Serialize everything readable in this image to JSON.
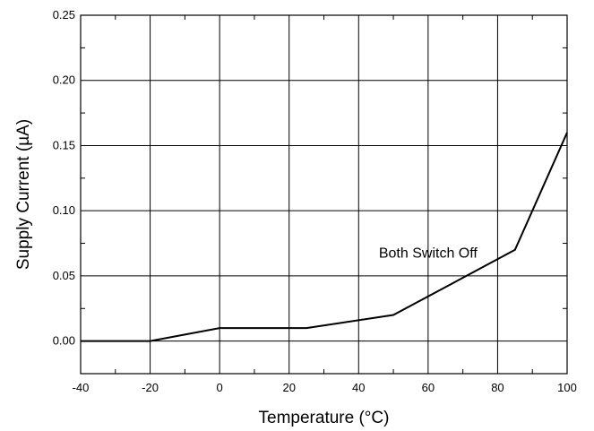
{
  "chart_data": {
    "type": "line",
    "title": "",
    "xlabel": "Temperature (°C)",
    "ylabel": "Supply Current (µA)",
    "xlim": [
      -40,
      100
    ],
    "ylim": [
      -0.025,
      0.25
    ],
    "x_ticks": [
      "-40",
      "-20",
      "0",
      "20",
      "40",
      "60",
      "80",
      "100"
    ],
    "y_ticks": [
      "0.00",
      "0.05",
      "0.10",
      "0.15",
      "0.20",
      "0.25"
    ],
    "grid": true,
    "series": [
      {
        "x": [
          -40,
          -20,
          0,
          25,
          50,
          85,
          100
        ],
        "y": [
          0.0,
          0.0,
          0.01,
          0.01,
          0.02,
          0.07,
          0.16
        ]
      }
    ],
    "annotations": [
      {
        "text": "Both Switch Off",
        "x": 60,
        "y": 0.064
      }
    ]
  }
}
